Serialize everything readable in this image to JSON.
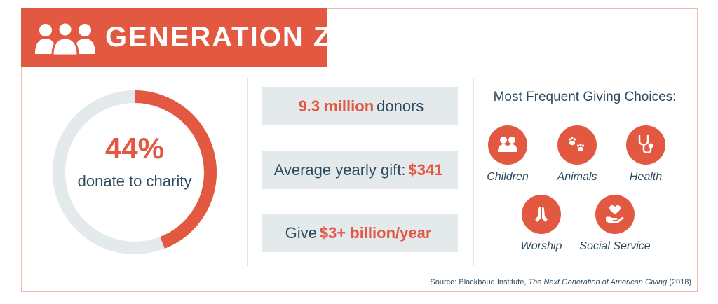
{
  "header": {
    "title": "GENERATION Z",
    "icon": "people-group-icon",
    "color": "#e35841"
  },
  "donut": {
    "percent_label": "44%",
    "value_fraction": 0.44,
    "caption": "donate to charity",
    "accent": "#e35841",
    "track": "#e4e9ec"
  },
  "stats": [
    {
      "before": "",
      "highlight": "9.3 million",
      "after": "donors"
    },
    {
      "before": "Average yearly gift:",
      "highlight": "$341",
      "after": ""
    },
    {
      "before": "Give",
      "highlight": "$3+ billion/year",
      "after": ""
    }
  ],
  "choices": {
    "title": "Most Frequent Giving Choices:",
    "items": [
      {
        "label": "Children",
        "icon": "children-icon"
      },
      {
        "label": "Animals",
        "icon": "paw-prints-icon"
      },
      {
        "label": "Health",
        "icon": "stethoscope-icon"
      },
      {
        "label": "Worship",
        "icon": "praying-hands-icon"
      },
      {
        "label": "Social Service",
        "icon": "heart-in-hand-icon"
      }
    ]
  },
  "source": {
    "prefix": "Source: Blackbaud Institute, ",
    "work": "The Next Generation of American Giving",
    "suffix": " (2018)"
  }
}
